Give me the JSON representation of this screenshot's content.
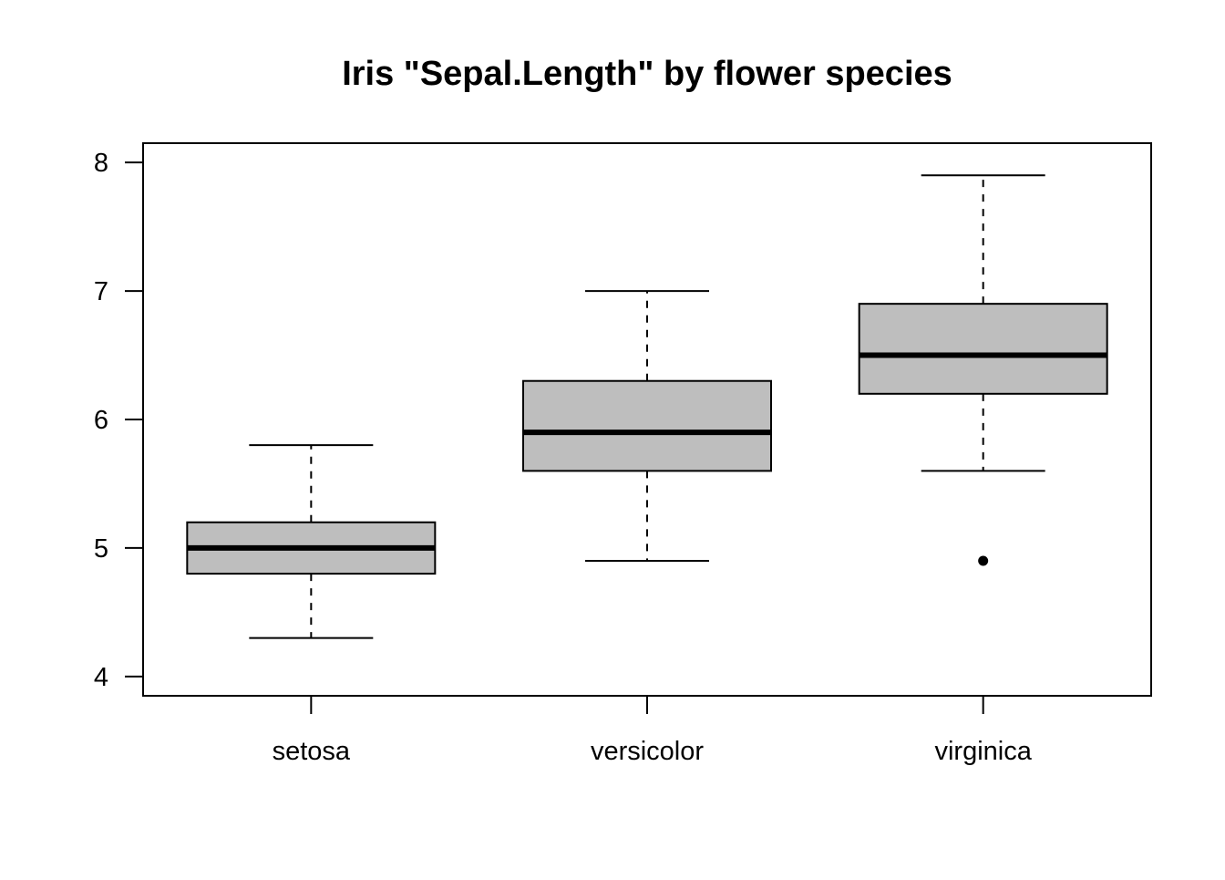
{
  "chart_data": {
    "type": "box",
    "title": "Iris \"Sepal.Length\" by flower species",
    "xlabel": "",
    "ylabel": "",
    "ylim": [
      3.85,
      8.15
    ],
    "yticks": [
      "4",
      "5",
      "6",
      "7",
      "8"
    ],
    "categories": [
      "setosa",
      "versicolor",
      "virginica"
    ],
    "boxes": [
      {
        "category": "setosa",
        "whisker_low": 4.3,
        "q1": 4.8,
        "median": 5.0,
        "q3": 5.2,
        "whisker_high": 5.8,
        "outliers": []
      },
      {
        "category": "versicolor",
        "whisker_low": 4.9,
        "q1": 5.6,
        "median": 5.9,
        "q3": 6.3,
        "whisker_high": 7.0,
        "outliers": []
      },
      {
        "category": "virginica",
        "whisker_low": 5.6,
        "q1": 6.2,
        "median": 6.5,
        "q3": 6.9,
        "whisker_high": 7.9,
        "outliers": [
          4.9
        ]
      }
    ],
    "grid": false,
    "legend": "none",
    "box_fill": "#bebebe",
    "line_color": "#000000"
  }
}
